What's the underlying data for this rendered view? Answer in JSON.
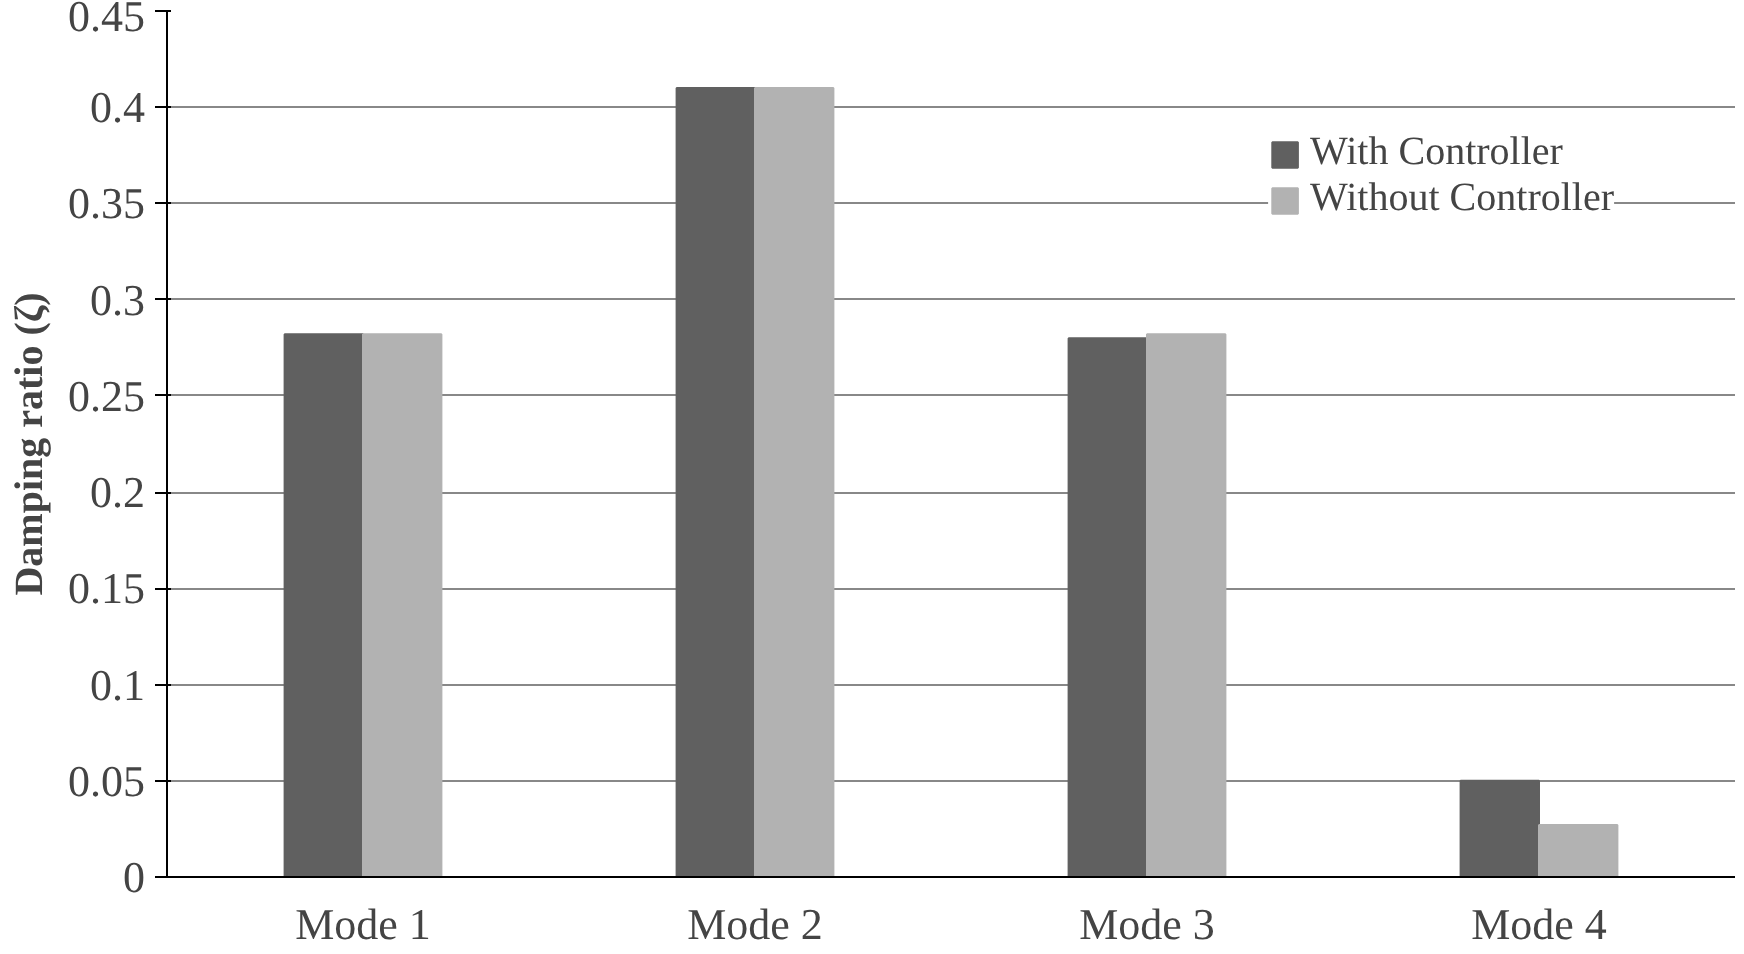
{
  "chart_data": {
    "type": "bar",
    "ylabel": "Damping ratio (ζ)",
    "categories": [
      "Mode 1",
      "Mode 2",
      "Mode 3",
      "Mode 4"
    ],
    "series": [
      {
        "name": "With Controller",
        "color": "#606060",
        "values": [
          0.282,
          0.41,
          0.28,
          0.05
        ]
      },
      {
        "name": "Without Controller",
        "color": "#b2b2b2",
        "values": [
          0.282,
          0.41,
          0.282,
          0.027
        ]
      }
    ],
    "ylim": [
      0,
      0.45
    ],
    "yticks": [
      0,
      0.05,
      0.1,
      0.15,
      0.2,
      0.25,
      0.3,
      0.35,
      0.4,
      0.45
    ],
    "grid": "y",
    "legend": "top right"
  }
}
